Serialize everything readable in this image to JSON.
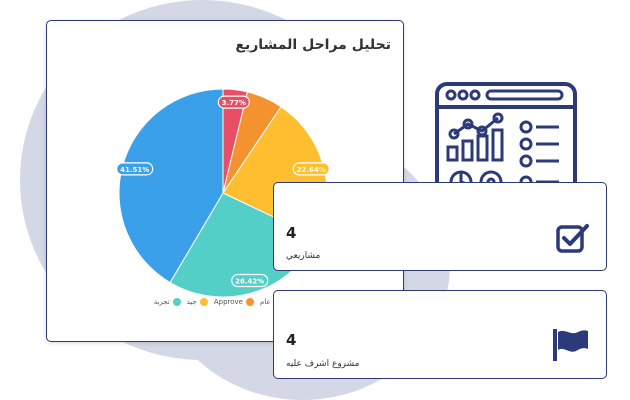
{
  "chart_card": {
    "title": "تحليل مراحل المشاريع"
  },
  "chart_data": {
    "type": "pie",
    "slices": [
      {
        "label": "بانتظار الإعتماد عام",
        "value": 3.77,
        "color": "#e94f64",
        "data_label": "3.77%"
      },
      {
        "label": "Approve",
        "value": 5.66,
        "color": "#f49230",
        "data_label": ""
      },
      {
        "label": "جيد",
        "value": 22.64,
        "color": "#fdbf30",
        "data_label": "22.64%"
      },
      {
        "label": "تجربة",
        "value": 26.42,
        "color": "#53cfc8",
        "data_label": "26.42%"
      },
      {
        "label": "",
        "value": 41.51,
        "color": "#3aa0ea",
        "data_label": "41.51%"
      }
    ],
    "legend_placement": "bottom"
  },
  "stats": [
    {
      "value": "4",
      "label": "مشاريعي",
      "icon": "checkbox-icon"
    },
    {
      "value": "4",
      "label": "مشروع اشرف عليه",
      "icon": "flag-icon"
    }
  ],
  "colors": {
    "border": "#2c3a7a",
    "background_blob": "#d4d8e6"
  }
}
